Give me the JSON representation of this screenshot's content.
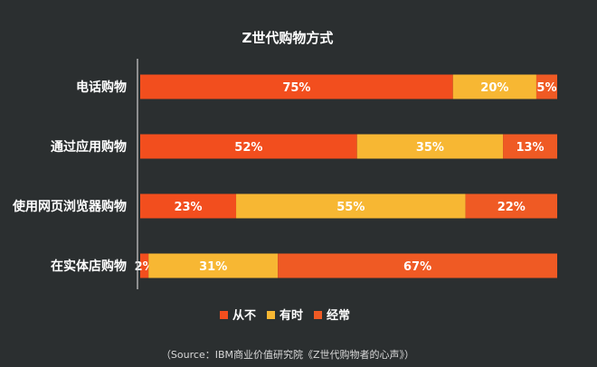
{
  "chart_data": {
    "type": "bar",
    "orientation": "horizontal",
    "stacked": true,
    "title": "Z世代购物方式",
    "categories": [
      "电话购物",
      "通过应用购物",
      "使用网页浏览器购物",
      "在实体店购物"
    ],
    "series": [
      {
        "name": "从不",
        "values": [
          75,
          52,
          23,
          2
        ],
        "labels": [
          "75%",
          "52%",
          "23%",
          "2%"
        ],
        "color": "#f24e1e"
      },
      {
        "name": "有时",
        "values": [
          20,
          35,
          55,
          31
        ],
        "labels": [
          "20%",
          "35%",
          "55%",
          "31%"
        ],
        "color": "#f7b733"
      },
      {
        "name": "经常",
        "values": [
          5,
          13,
          22,
          67
        ],
        "labels": [
          "5%",
          "13%",
          "22%",
          "67%"
        ],
        "color": "#ef5a24"
      }
    ],
    "xlim": [
      0,
      100
    ],
    "grid": false,
    "legend": "bottom-center"
  },
  "source_text": "（Source：IBM商业价值研究院《Z世代购物者的心声》）",
  "colors": {
    "background": "#2b2f30",
    "axis_line": "#cfcfcf",
    "label_text": "#ffffff"
  }
}
